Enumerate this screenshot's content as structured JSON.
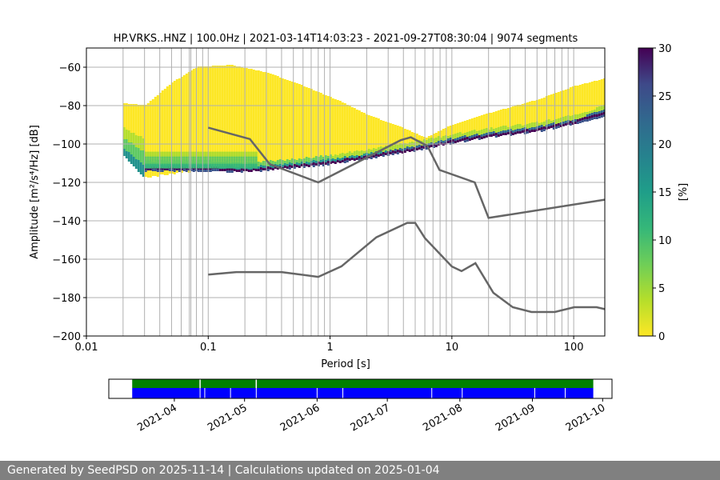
{
  "chart_data": {
    "type": "heatmap",
    "title": "HP.VRKS..HNZ | 100.0Hz | 2021-03-14T14:03:23 - 2021-09-27T08:30:04 | 9074 segments",
    "xlabel": "Period [s]",
    "ylabel": "Amplitude [m²/s⁴/Hz] [dB]",
    "x_scale": "log",
    "xlim": [
      0.01,
      180
    ],
    "ylim": [
      -200,
      -50
    ],
    "x_ticks": [
      {
        "value": 0.01,
        "label": "0.01"
      },
      {
        "value": 0.1,
        "label": "0.1"
      },
      {
        "value": 1,
        "label": "1"
      },
      {
        "value": 10,
        "label": "10"
      },
      {
        "value": 100,
        "label": "100"
      }
    ],
    "y_ticks": [
      {
        "value": -60,
        "label": "−60"
      },
      {
        "value": -80,
        "label": "−80"
      },
      {
        "value": -100,
        "label": "−100"
      },
      {
        "value": -120,
        "label": "−120"
      },
      {
        "value": -140,
        "label": "−140"
      },
      {
        "value": -160,
        "label": "−160"
      },
      {
        "value": -180,
        "label": "−180"
      },
      {
        "value": -200,
        "label": "−200"
      }
    ],
    "colorbar": {
      "label": "[%]",
      "range": [
        0,
        30
      ],
      "colormap": "viridis_r",
      "ticks": [
        {
          "value": 0,
          "label": "0"
        },
        {
          "value": 5,
          "label": "5"
        },
        {
          "value": 10,
          "label": "10"
        },
        {
          "value": 15,
          "label": "15"
        },
        {
          "value": 20,
          "label": "20"
        },
        {
          "value": 25,
          "label": "25"
        },
        {
          "value": 30,
          "label": "30"
        }
      ]
    },
    "grid_periods": [
      0.02,
      0.03,
      0.04,
      0.05,
      0.06,
      0.07,
      0.072,
      0.08,
      0.09,
      0.1,
      0.2,
      0.3,
      0.4,
      0.5,
      0.6,
      0.7,
      0.8,
      0.9,
      1,
      2,
      3,
      4,
      5,
      6,
      7,
      8,
      9,
      10,
      20,
      30,
      40,
      50,
      60,
      70,
      80,
      90,
      100
    ],
    "distribution": {
      "mode_line": [
        [
          0.02,
          -103
        ],
        [
          0.03,
          -112
        ],
        [
          0.06,
          -112
        ],
        [
          0.1,
          -112
        ],
        [
          0.2,
          -113
        ],
        [
          0.5,
          -111
        ],
        [
          1,
          -109
        ],
        [
          2,
          -106
        ],
        [
          5,
          -102
        ],
        [
          10,
          -98
        ],
        [
          20,
          -95
        ],
        [
          50,
          -92
        ],
        [
          100,
          -88
        ],
        [
          180,
          -83
        ]
      ],
      "upper_envelope": [
        [
          0.02,
          -79
        ],
        [
          0.03,
          -80
        ],
        [
          0.05,
          -68
        ],
        [
          0.08,
          -60
        ],
        [
          0.15,
          -59
        ],
        [
          0.3,
          -63
        ],
        [
          0.6,
          -70
        ],
        [
          1.2,
          -78
        ],
        [
          2,
          -85
        ],
        [
          4,
          -92
        ],
        [
          6,
          -97
        ],
        [
          10,
          -90
        ],
        [
          20,
          -84
        ],
        [
          50,
          -77
        ],
        [
          100,
          -70
        ],
        [
          180,
          -66
        ]
      ],
      "lower_envelope": [
        [
          0.02,
          -106
        ],
        [
          0.03,
          -117
        ],
        [
          0.06,
          -114
        ],
        [
          0.1,
          -114
        ],
        [
          0.2,
          -114
        ],
        [
          0.5,
          -112
        ],
        [
          1,
          -110
        ],
        [
          2,
          -107
        ],
        [
          5,
          -103
        ],
        [
          10,
          -99
        ],
        [
          20,
          -96
        ],
        [
          50,
          -93
        ],
        [
          100,
          -89
        ],
        [
          180,
          -85
        ]
      ]
    },
    "noise_models": [
      {
        "name": "NHNM",
        "points": [
          [
            0.1,
            -91.5
          ],
          [
            0.22,
            -97.4
          ],
          [
            0.32,
            -110.5
          ],
          [
            0.8,
            -120
          ],
          [
            3.8,
            -98
          ],
          [
            4.6,
            -96.5
          ],
          [
            6.3,
            -101
          ],
          [
            7.9,
            -113.5
          ],
          [
            15.4,
            -120
          ],
          [
            20,
            -138.5
          ],
          [
            180,
            -129
          ]
        ]
      },
      {
        "name": "NLNM",
        "points": [
          [
            0.1,
            -168
          ],
          [
            0.17,
            -166.7
          ],
          [
            0.4,
            -166.7
          ],
          [
            0.8,
            -169.2
          ],
          [
            1.24,
            -163.7
          ],
          [
            2.4,
            -148.6
          ],
          [
            4.3,
            -141.1
          ],
          [
            5,
            -141.1
          ],
          [
            6,
            -149
          ],
          [
            10,
            -163.8
          ],
          [
            12,
            -166.2
          ],
          [
            15.6,
            -162.1
          ],
          [
            21.9,
            -177.5
          ],
          [
            31.6,
            -185
          ],
          [
            45,
            -187.5
          ],
          [
            70,
            -187.5
          ],
          [
            101,
            -185
          ],
          [
            154,
            -185
          ],
          [
            180,
            -186
          ]
        ]
      }
    ],
    "timeline": {
      "date_start": "2021-03-14",
      "date_end": "2021-09-27",
      "axis_start": "2021-03-04",
      "axis_end": "2021-10-05",
      "tick_labels": [
        {
          "date": "2021-04-01",
          "label": "2021-04"
        },
        {
          "date": "2021-05-01",
          "label": "2021-05"
        },
        {
          "date": "2021-06-01",
          "label": "2021-06"
        },
        {
          "date": "2021-07-01",
          "label": "2021-07"
        },
        {
          "date": "2021-08-01",
          "label": "2021-08"
        },
        {
          "date": "2021-09-01",
          "label": "2021-09"
        },
        {
          "date": "2021-10-01",
          "label": "2021-10"
        }
      ],
      "data_color": "#008000",
      "psd_color": "#0000ff",
      "gaps": [
        "2021-04-12",
        "2021-04-14",
        "2021-04-25",
        "2021-05-06",
        "2021-06-01",
        "2021-06-12",
        "2021-07-20",
        "2021-08-02",
        "2021-09-02",
        "2021-09-15"
      ]
    }
  },
  "footer": {
    "text": "Generated by SeedPSD on 2025-11-14 | Calculations updated on 2025-01-04"
  }
}
